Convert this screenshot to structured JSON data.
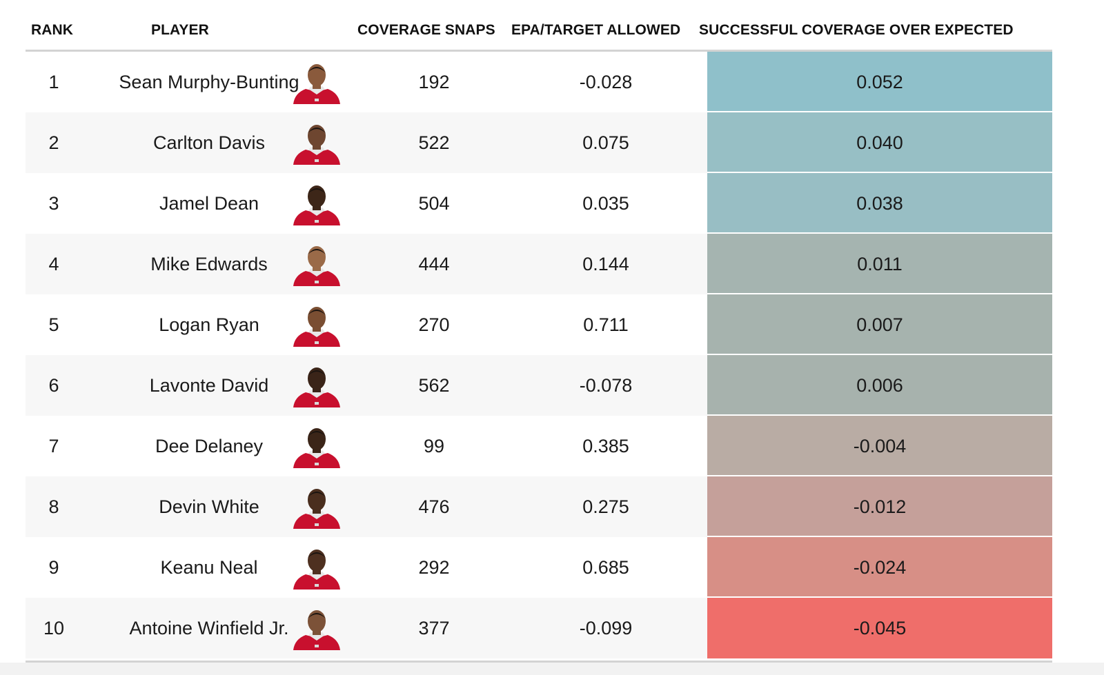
{
  "table": {
    "headers": {
      "rank": "RANK",
      "player": "PLAYER",
      "snaps": "COVERAGE SNAPS",
      "epa": "EPA/TARGET ALLOWED",
      "sco": "SUCCESSFUL COVERAGE OVER EXPECTED"
    },
    "rows": [
      {
        "rank": "1",
        "player": "Sean Murphy-Bunting",
        "snaps": "192",
        "epa": "-0.028",
        "sco": "0.052",
        "sco_color": "#8fc0ca",
        "skin": "#8a5a3c"
      },
      {
        "rank": "2",
        "player": "Carlton Davis",
        "snaps": "522",
        "epa": "0.075",
        "sco": "0.040",
        "sco_color": "#97bfc5",
        "skin": "#6e4630"
      },
      {
        "rank": "3",
        "player": "Jamel Dean",
        "snaps": "504",
        "epa": "0.035",
        "sco": "0.038",
        "sco_color": "#98bec4",
        "skin": "#3d2618"
      },
      {
        "rank": "4",
        "player": "Mike Edwards",
        "snaps": "444",
        "epa": "0.144",
        "sco": "0.011",
        "sco_color": "#a5b4b0",
        "skin": "#9a6a48"
      },
      {
        "rank": "5",
        "player": "Logan Ryan",
        "snaps": "270",
        "epa": "0.711",
        "sco": "0.007",
        "sco_color": "#a6b3ae",
        "skin": "#7a4e32"
      },
      {
        "rank": "6",
        "player": "Lavonte David",
        "snaps": "562",
        "epa": "-0.078",
        "sco": "0.006",
        "sco_color": "#a7b2ad",
        "skin": "#3a2418"
      },
      {
        "rank": "7",
        "player": "Dee Delaney",
        "snaps": "99",
        "epa": "0.385",
        "sco": "-0.004",
        "sco_color": "#b9aca4",
        "skin": "#3b2518"
      },
      {
        "rank": "8",
        "player": "Devin White",
        "snaps": "476",
        "epa": "0.275",
        "sco": "-0.012",
        "sco_color": "#c5a09a",
        "skin": "#4a2e1e"
      },
      {
        "rank": "9",
        "player": "Keanu Neal",
        "snaps": "292",
        "epa": "0.685",
        "sco": "-0.024",
        "sco_color": "#d78f86",
        "skin": "#4e3020"
      },
      {
        "rank": "10",
        "player": "Antoine Winfield Jr.",
        "snaps": "377",
        "epa": "-0.099",
        "sco": "-0.045",
        "sco_color": "#ef6e6a",
        "skin": "#7c5238"
      }
    ]
  }
}
